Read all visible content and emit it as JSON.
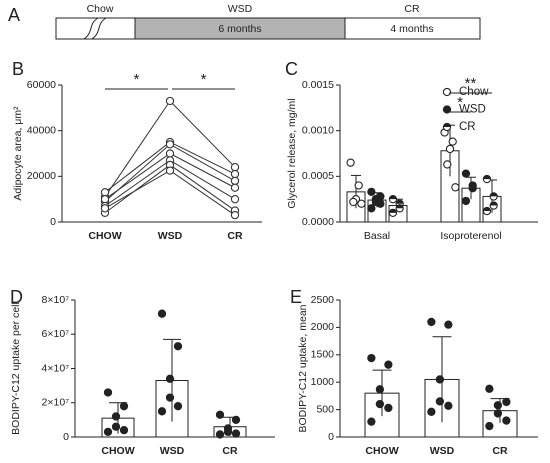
{
  "timeline": {
    "label": "A",
    "phases": [
      {
        "name": "Chow"
      },
      {
        "name": "WSD",
        "duration": "6 months"
      },
      {
        "name": "CR",
        "duration": "4 months"
      }
    ]
  },
  "chart_data": [
    {
      "type": "line",
      "panel": "B",
      "ylabel": "Adipocyte area, μm²",
      "categories": [
        "CHOW",
        "WSD",
        "CR"
      ],
      "marker": "open",
      "color": "#333333",
      "series": [
        {
          "values": [
            11000,
            53000,
            24000
          ]
        },
        {
          "values": [
            13000,
            35000,
            21000
          ]
        },
        {
          "values": [
            9000,
            34000,
            18000
          ]
        },
        {
          "values": [
            10000,
            30000,
            15000
          ]
        },
        {
          "values": [
            7000,
            27000,
            10000
          ]
        },
        {
          "values": [
            4000,
            25000,
            5000
          ]
        },
        {
          "values": [
            6000,
            22500,
            3000
          ]
        }
      ],
      "ylim": [
        0,
        60000
      ],
      "yticks": [
        0,
        20000,
        40000,
        60000
      ],
      "annotations": [
        "*",
        "*"
      ]
    },
    {
      "type": "bar",
      "panel": "C",
      "ylabel": "Glycerol release, mg/ml",
      "categories": [
        "Basal",
        "Isoproterenol"
      ],
      "legend": "upper right",
      "color": "#222222",
      "series": [
        {
          "name": "Chow",
          "marker": "open",
          "values": [
            0.00033,
            0.00078
          ],
          "errors": [
            0.00018,
            0.00028
          ],
          "points": [
            [
              0.00065,
              0.0004,
              0.00025,
              0.00022,
              0.0002
            ],
            [
              0.00098,
              0.00088,
              0.0008,
              0.00063,
              0.00038
            ]
          ]
        },
        {
          "name": "WSD",
          "marker": "filled",
          "values": [
            0.00024,
            0.00037
          ],
          "errors": [
            8e-05,
            0.00012
          ],
          "points": [
            [
              0.00033,
              0.00028,
              0.00025,
              0.00022,
              0.0002,
              0.00015
            ],
            [
              0.00053,
              0.0004,
              0.00037,
              0.00023
            ]
          ]
        },
        {
          "name": "CR",
          "marker": "half",
          "values": [
            0.00018,
            0.00028
          ],
          "errors": [
            7e-05,
            0.00018
          ],
          "points": [
            [
              0.00025,
              0.0002,
              0.00015,
              0.0001
            ],
            [
              0.00047,
              0.00028,
              0.00018,
              0.00012
            ]
          ]
        }
      ],
      "ylim": [
        0,
        0.0015
      ],
      "yticks": [
        {
          "value": 0,
          "label": "0.0000"
        },
        0.0005,
        {
          "value": 0.001,
          "label": "0.0010"
        },
        0.0015
      ],
      "annotations": [
        "*",
        "**"
      ]
    },
    {
      "type": "bar",
      "panel": "D",
      "ylabel": "BODIPY-C12 uptake per cell",
      "categories": [
        "CHOW",
        "WSD",
        "CR"
      ],
      "marker": "filled",
      "color": "#222222",
      "values": [
        11000000,
        33000000,
        6000000
      ],
      "errors": [
        9000000,
        24000000,
        5500000
      ],
      "points": [
        [
          26000000,
          18000000,
          12000000,
          6000000,
          4000000,
          3000000
        ],
        [
          72000000,
          53000000,
          34000000,
          23000000,
          18000000,
          15000000
        ],
        [
          13000000,
          10000000,
          5000000,
          3000000,
          2000000,
          1500000
        ]
      ],
      "ylim": [
        0,
        80000000
      ],
      "yticks": [
        0,
        {
          "value": 20000000,
          "label": "2×10⁷"
        },
        {
          "value": 40000000,
          "label": "4×10⁷"
        },
        {
          "value": 60000000,
          "label": "6×10⁷"
        },
        {
          "value": 80000000,
          "label": "8×10⁷"
        }
      ]
    },
    {
      "type": "bar",
      "panel": "E",
      "ylabel": "BODIPY-C12 uptake, mean",
      "categories": [
        "CHOW",
        "WSD",
        "CR"
      ],
      "marker": "filled",
      "color": "#222222",
      "values": [
        800,
        1050,
        480
      ],
      "errors": [
        420,
        780,
        220
      ],
      "points": [
        [
          1440,
          1320,
          870,
          600,
          530,
          280
        ],
        [
          2100,
          2050,
          1050,
          650,
          570,
          460
        ],
        [
          880,
          640,
          580,
          430,
          300,
          200
        ]
      ],
      "ylim": [
        0,
        2500
      ],
      "yticks": [
        0,
        500,
        1000,
        1500,
        2000,
        2500
      ]
    }
  ]
}
